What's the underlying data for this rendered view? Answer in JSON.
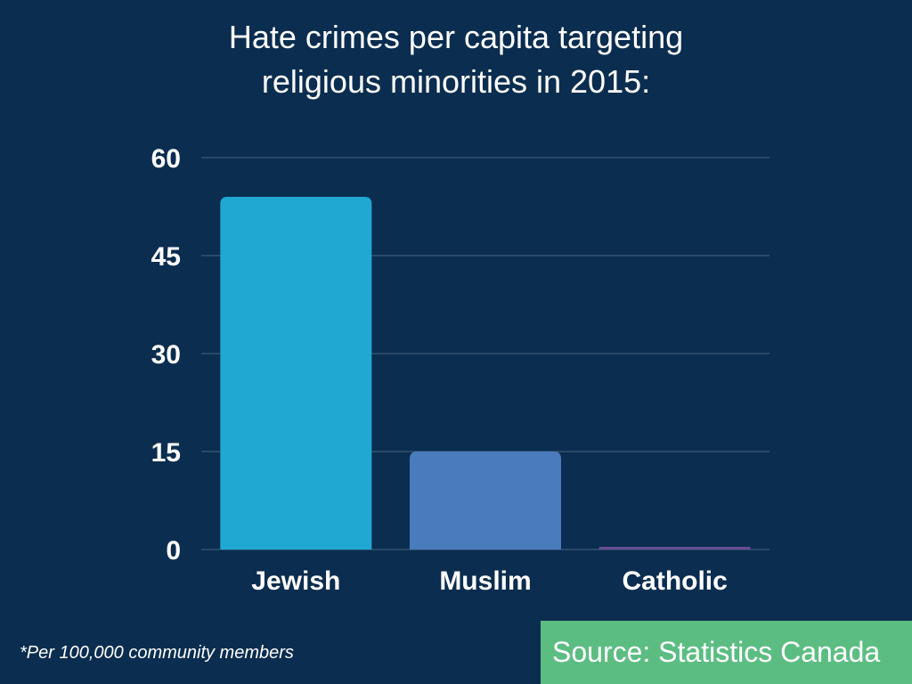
{
  "title_lines": [
    "Hate crimes per capita targeting",
    "religious minorities in 2015:"
  ],
  "footnote": "*Per 100,000 community members",
  "source": "Source: Statistics Canada",
  "colors": {
    "background": "#0b2d4f",
    "source_box": "#5cbd82",
    "gridline": "#4a6580"
  },
  "chart_data": {
    "type": "bar",
    "title": "Hate crimes per capita targeting religious minorities in 2015:",
    "categories": [
      "Jewish",
      "Muslim",
      "Catholic"
    ],
    "values": [
      54,
      15,
      0.4
    ],
    "bar_colors": [
      "#20a8d3",
      "#4a7bbd",
      "#6a4d94"
    ],
    "xlabel": "",
    "ylabel": "",
    "ylim": [
      0,
      60
    ],
    "yticks": [
      0,
      15,
      30,
      45,
      60
    ],
    "ytick_labels": [
      "0",
      "15",
      "30",
      "45",
      "60"
    ],
    "grid": true,
    "legend": "none"
  }
}
